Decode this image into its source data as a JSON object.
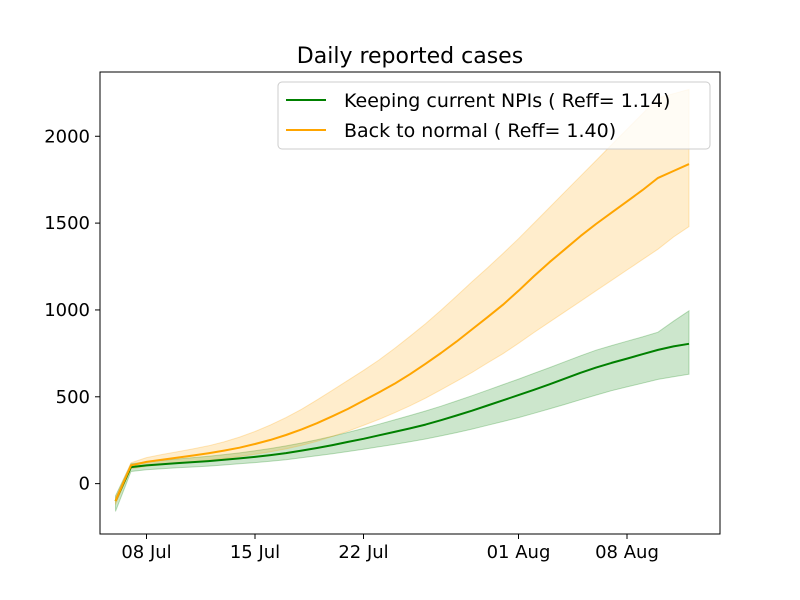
{
  "chart_data": {
    "type": "line",
    "title": "Daily reported cases",
    "xlabel": "",
    "ylabel": "",
    "x_dates": [
      "07-06",
      "07-07",
      "07-08",
      "07-09",
      "07-10",
      "07-11",
      "07-12",
      "07-13",
      "07-14",
      "07-15",
      "07-16",
      "07-17",
      "07-18",
      "07-19",
      "07-20",
      "07-21",
      "07-22",
      "07-23",
      "07-24",
      "07-25",
      "07-26",
      "07-27",
      "07-28",
      "07-29",
      "07-30",
      "07-31",
      "08-01",
      "08-02",
      "08-03",
      "08-04",
      "08-05",
      "08-06",
      "08-07",
      "08-08",
      "08-09",
      "08-10",
      "08-11",
      "08-12"
    ],
    "xlim": [
      "07-05",
      "08-14"
    ],
    "ylim": [
      -290,
      2370
    ],
    "x_ticks": [
      {
        "date": "07-08",
        "label": "08 Jul"
      },
      {
        "date": "07-15",
        "label": "15 Jul"
      },
      {
        "date": "07-22",
        "label": "22 Jul"
      },
      {
        "date": "08-01",
        "label": "01 Aug"
      },
      {
        "date": "08-08",
        "label": "08 Aug"
      }
    ],
    "y_ticks": [
      {
        "value": 0,
        "label": "0"
      },
      {
        "value": 500,
        "label": "500"
      },
      {
        "value": 1000,
        "label": "1000"
      },
      {
        "value": 1500,
        "label": "1500"
      },
      {
        "value": 2000,
        "label": "2000"
      }
    ],
    "grid": false,
    "legend_position": "top-right",
    "series": [
      {
        "name": "Keeping current NPIs ( Reff= 1.14)",
        "color": "#008000",
        "band_opacity": 0.2,
        "values": [
          -100,
          95,
          105,
          112,
          118,
          124,
          130,
          137,
          145,
          154,
          164,
          176,
          190,
          205,
          222,
          240,
          258,
          278,
          298,
          318,
          340,
          365,
          392,
          420,
          450,
          480,
          510,
          540,
          572,
          605,
          638,
          668,
          695,
          720,
          745,
          770,
          790,
          805
        ],
        "lower": [
          -160,
          70,
          80,
          86,
          91,
          96,
          101,
          107,
          114,
          121,
          129,
          138,
          149,
          160,
          172,
          185,
          198,
          212,
          226,
          241,
          257,
          275,
          294,
          314,
          336,
          358,
          380,
          405,
          430,
          456,
          483,
          510,
          535,
          557,
          578,
          600,
          615,
          630
        ],
        "upper": [
          -70,
          115,
          125,
          134,
          142,
          150,
          158,
          167,
          177,
          189,
          202,
          217,
          234,
          253,
          273,
          295,
          318,
          342,
          367,
          392,
          418,
          446,
          476,
          506,
          538,
          570,
          602,
          635,
          668,
          702,
          736,
          768,
          795,
          820,
          845,
          872,
          935,
          995
        ]
      },
      {
        "name": "Back to normal ( Reff= 1.40)",
        "color": "#ffa500",
        "band_opacity": 0.2,
        "values": [
          -100,
          105,
          125,
          138,
          150,
          162,
          175,
          190,
          207,
          228,
          252,
          280,
          312,
          348,
          388,
          430,
          478,
          525,
          575,
          630,
          690,
          752,
          818,
          888,
          958,
          1030,
          1110,
          1195,
          1275,
          1350,
          1425,
          1495,
          1560,
          1625,
          1690,
          1760,
          1800,
          1840
        ],
        "lower": [
          -120,
          85,
          100,
          109,
          118,
          126,
          135,
          145,
          156,
          169,
          183,
          200,
          220,
          244,
          272,
          302,
          335,
          370,
          408,
          448,
          492,
          540,
          590,
          640,
          695,
          748,
          808,
          870,
          930,
          990,
          1050,
          1110,
          1170,
          1230,
          1290,
          1350,
          1420,
          1480
        ],
        "upper": [
          -80,
          120,
          150,
          168,
          184,
          200,
          218,
          240,
          268,
          300,
          338,
          380,
          428,
          482,
          538,
          595,
          652,
          712,
          778,
          848,
          920,
          998,
          1080,
          1162,
          1242,
          1325,
          1410,
          1500,
          1590,
          1680,
          1770,
          1860,
          1950,
          2040,
          2130,
          2220,
          2245,
          2270
        ]
      }
    ]
  }
}
